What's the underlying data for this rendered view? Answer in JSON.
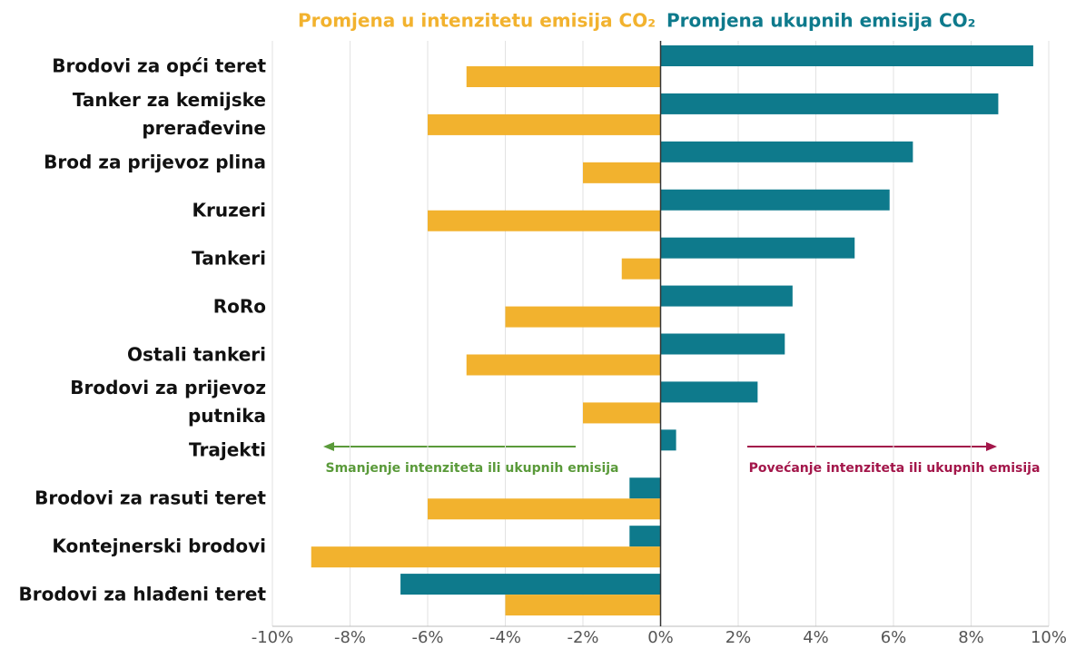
{
  "chart_data": {
    "type": "hbar",
    "categories": [
      "Brodovi za opći teret",
      "Tanker za kemijske prerađevine",
      "Brod za prijevoz plina",
      "Kruzeri",
      "Tankeri",
      "RoRo",
      "Ostali tankeri",
      "Brodovi za prijevoz putnika",
      "Trajekti",
      "Brodovi za rasuti teret",
      "Kontejnerski brodovi",
      "Brodovi za hlađeni teret"
    ],
    "series": [
      {
        "name": "Promjena ukupnih emisija CO₂",
        "color": "#0e7a8c",
        "values": [
          9.6,
          8.7,
          6.5,
          5.9,
          5.0,
          3.4,
          3.2,
          2.5,
          0.4,
          -0.8,
          -0.8,
          -6.7
        ]
      },
      {
        "name": "Promjena u intenzitetu emisija CO₂",
        "color": "#f2b22e",
        "values": [
          -5,
          -6,
          -2,
          -6,
          -1,
          -4,
          -5,
          -2,
          null,
          -6,
          -9,
          -4
        ]
      }
    ],
    "xlim": [
      -10,
      10
    ],
    "xticks": [
      {
        "value": -10,
        "label": "-10%"
      },
      {
        "value": -8,
        "label": "-8%"
      },
      {
        "value": -6,
        "label": "-6%"
      },
      {
        "value": -4,
        "label": "-4%"
      },
      {
        "value": -2,
        "label": "-2%"
      },
      {
        "value": 0,
        "label": "0%"
      },
      {
        "value": 2,
        "label": "2%"
      },
      {
        "value": 4,
        "label": "4%"
      },
      {
        "value": 6,
        "label": "6%"
      },
      {
        "value": 8,
        "label": "8%"
      },
      {
        "value": 10,
        "label": "10%"
      }
    ],
    "grid": true,
    "annotations": [
      {
        "text": "Smanjenje intenziteta ili ukupnih emisija",
        "color": "#5a9a3a"
      },
      {
        "text": "Povećanje intenziteta ili ukupnih emisija",
        "color": "#a3164a"
      }
    ]
  }
}
